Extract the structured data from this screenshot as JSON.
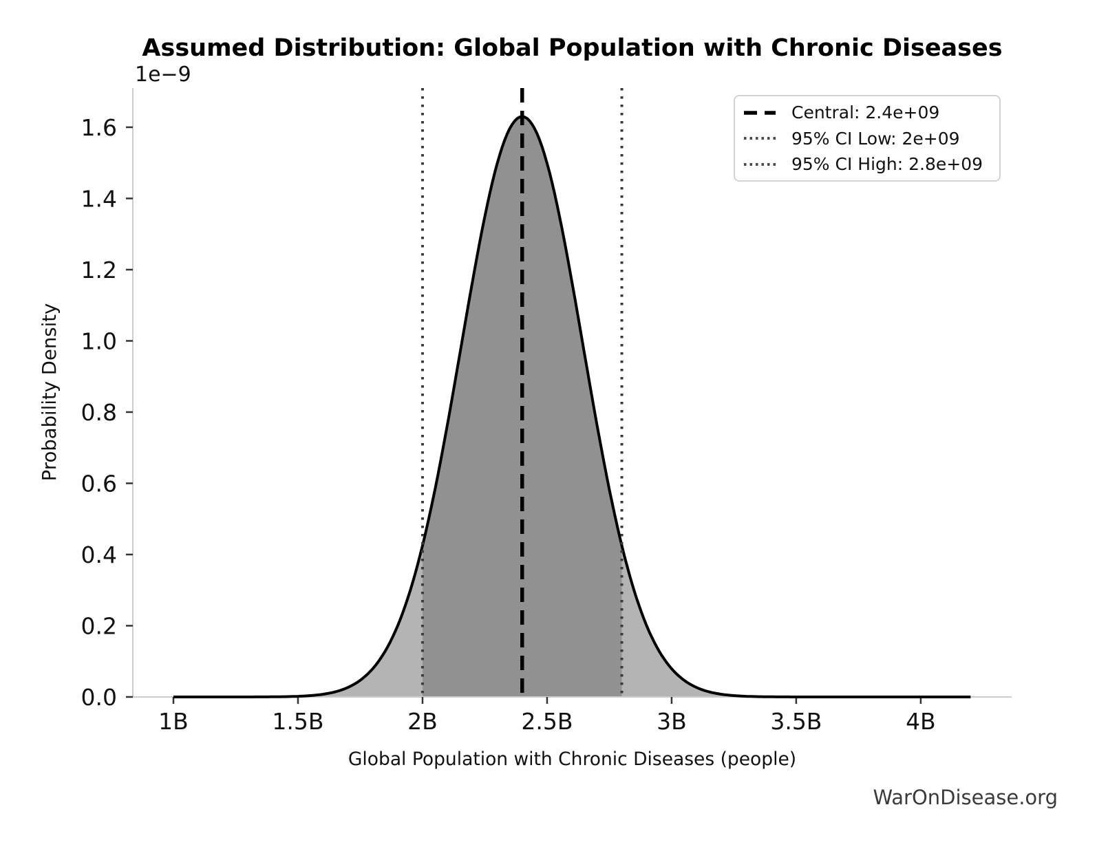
{
  "watermark": "WarOnDisease.org",
  "chart_data": {
    "type": "area",
    "title": "Assumed Distribution: Global Population with Chronic Diseases",
    "xlabel": "Global Population with Chronic Diseases (people)",
    "ylabel": "Probability Density",
    "y_offset_text": "1e−9",
    "x_tick_values": [
      1000000000,
      1500000000,
      2000000000,
      2500000000,
      3000000000,
      3500000000,
      4000000000
    ],
    "x_tick_labels": [
      "1B",
      "1.5B",
      "2B",
      "2.5B",
      "3B",
      "3.5B",
      "4B"
    ],
    "y_tick_values": [
      0,
      2e-10,
      4e-10,
      6e-10,
      8e-10,
      1e-09,
      1.2e-09,
      1.4e-09,
      1.6e-09
    ],
    "y_tick_labels": [
      "0.0",
      "0.2",
      "0.4",
      "0.6",
      "0.8",
      "1.0",
      "1.2",
      "1.4",
      "1.6"
    ],
    "xlim": [
      837000000,
      4365000000
    ],
    "ylim": [
      0,
      1.71e-09
    ],
    "grid": false,
    "legend_position": "upper right",
    "legend": {
      "items": [
        {
          "label": "Central: 2.4e+09",
          "line_style": "dashed",
          "color": "#000000"
        },
        {
          "label": "95% CI Low: 2e+09",
          "line_style": "dotted",
          "color": "#4a4a4a"
        },
        {
          "label": "95% CI High: 2.8e+09",
          "line_style": "dotted",
          "color": "#4a4a4a"
        }
      ]
    },
    "distribution": {
      "shape": "normal",
      "mean": 2400000000,
      "std": 244000000,
      "peak_density": 1.63e-09,
      "x_range": [
        1000000000,
        4200000000
      ],
      "central": 2400000000,
      "ci_low": 2000000000,
      "ci_high": 2800000000
    },
    "colors": {
      "curve": "#000000",
      "fill_outer": "#b4b4b4",
      "fill_inner": "#919191",
      "central_line": "#000000",
      "ci_line": "#3a3a3a",
      "spine": "#cccccc",
      "tick": "#333333",
      "text": "#111111",
      "watermark": "#3b3b3b"
    }
  }
}
